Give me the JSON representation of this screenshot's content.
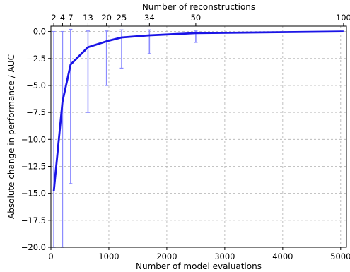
{
  "chart_data": {
    "type": "line",
    "title": "",
    "xlabel": "Number of model evaluations",
    "ylabel": "Absolute change in performance / AUC",
    "x2label": "Number of reconstructions",
    "xlim": [
      0,
      5100
    ],
    "ylim": [
      -20.0,
      0.5
    ],
    "x_ticks": [
      0,
      1000,
      2000,
      3000,
      4000,
      5000
    ],
    "x_tick_labels": [
      "0",
      "1000",
      "2000",
      "3000",
      "4000",
      "5000"
    ],
    "y_ticks": [
      -20.0,
      -17.5,
      -15.0,
      -12.5,
      -10.0,
      -7.5,
      -5.0,
      -2.5,
      0.0
    ],
    "y_tick_labels": [
      "−20.0",
      "−17.5",
      "−15.0",
      "−12.5",
      "−10.0",
      "−7.5",
      "−5.0",
      "−2.5",
      "0.0"
    ],
    "x2_ticks": [
      2,
      4,
      7,
      13,
      20,
      25,
      34,
      50,
      100
    ],
    "x2_ticks_at_x": [
      50,
      200,
      340,
      640,
      960,
      1220,
      1700,
      2500,
      5050
    ],
    "grid": true,
    "line_color": "#1a14e6",
    "errorbar_color": "#8c8cff",
    "series": [
      {
        "x": [
          50,
          200,
          340,
          640,
          960,
          1220,
          1700,
          2500,
          5050
        ],
        "y": [
          -14.8,
          -6.5,
          -3.05,
          -1.45,
          -0.9,
          -0.55,
          -0.35,
          -0.15,
          0.0
        ],
        "yerr_low": [
          -20.0,
          -20.0,
          -14.1,
          -7.5,
          -5.0,
          -3.4,
          -2.05,
          -1.0,
          0.0
        ],
        "yerr_high": [
          0.0,
          0.0,
          0.2,
          0.05,
          0.05,
          0.15,
          0.15,
          0.05,
          0.0
        ]
      }
    ]
  }
}
